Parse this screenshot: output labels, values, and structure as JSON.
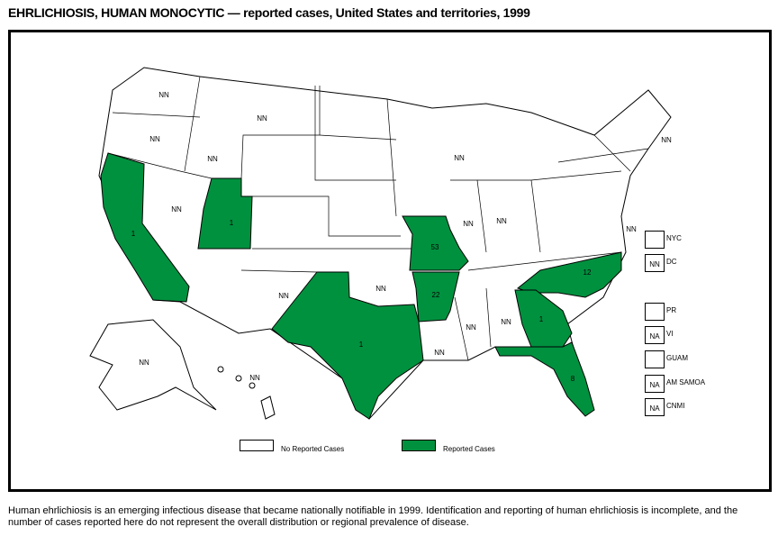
{
  "title": "EHRLICHIOSIS, HUMAN MONOCYTIC — reported cases, United States and territories, 1999",
  "colors": {
    "reported": "#00913f",
    "none": "#ffffff"
  },
  "states": [
    {
      "name": "CA",
      "label": "1",
      "reported": true
    },
    {
      "name": "UT",
      "label": "1",
      "reported": true
    },
    {
      "name": "MO",
      "label": "53",
      "reported": true
    },
    {
      "name": "AR",
      "label": "22",
      "reported": true
    },
    {
      "name": "TX",
      "label": "1",
      "reported": true
    },
    {
      "name": "NC",
      "label": "12",
      "reported": true
    },
    {
      "name": "GA",
      "label": "1",
      "reported": true
    },
    {
      "name": "FL",
      "label": "8",
      "reported": true
    },
    {
      "name": "WA",
      "label": "NN"
    },
    {
      "name": "OR",
      "label": "NN"
    },
    {
      "name": "ID",
      "label": "NN"
    },
    {
      "name": "MT",
      "label": "NN"
    },
    {
      "name": "NV",
      "label": "NN"
    },
    {
      "name": "NM",
      "label": "NN"
    },
    {
      "name": "OK",
      "label": "NN"
    },
    {
      "name": "LA",
      "label": "NN"
    },
    {
      "name": "MS",
      "label": "NN"
    },
    {
      "name": "AL",
      "label": "NN"
    },
    {
      "name": "IL",
      "label": "NN"
    },
    {
      "name": "IN",
      "label": "NN"
    },
    {
      "name": "WI",
      "label": "NN"
    },
    {
      "name": "AK",
      "label": "NN"
    },
    {
      "name": "HI",
      "label": "NN"
    },
    {
      "name": "NH",
      "label": "NN"
    },
    {
      "name": "DE",
      "label": "NN"
    }
  ],
  "territories": [
    {
      "name": "NYC",
      "label": ""
    },
    {
      "name": "DC",
      "label": "NN"
    },
    {
      "name": "PR",
      "label": ""
    },
    {
      "name": "VI",
      "label": "NA"
    },
    {
      "name": "GUAM",
      "label": ""
    },
    {
      "name": "AM SAMOA",
      "label": "NA"
    },
    {
      "name": "CNMI",
      "label": "NA"
    }
  ],
  "legend": {
    "none": "No Reported Cases",
    "reported": "Reported Cases"
  },
  "footnote": "Human ehrlichiosis is an emerging infectious disease that became nationally notifiable in 1999. Identification and reporting of human ehrlichiosis is incomplete, and the number of cases reported here do not represent the overall distribution or regional prevalence of disease."
}
